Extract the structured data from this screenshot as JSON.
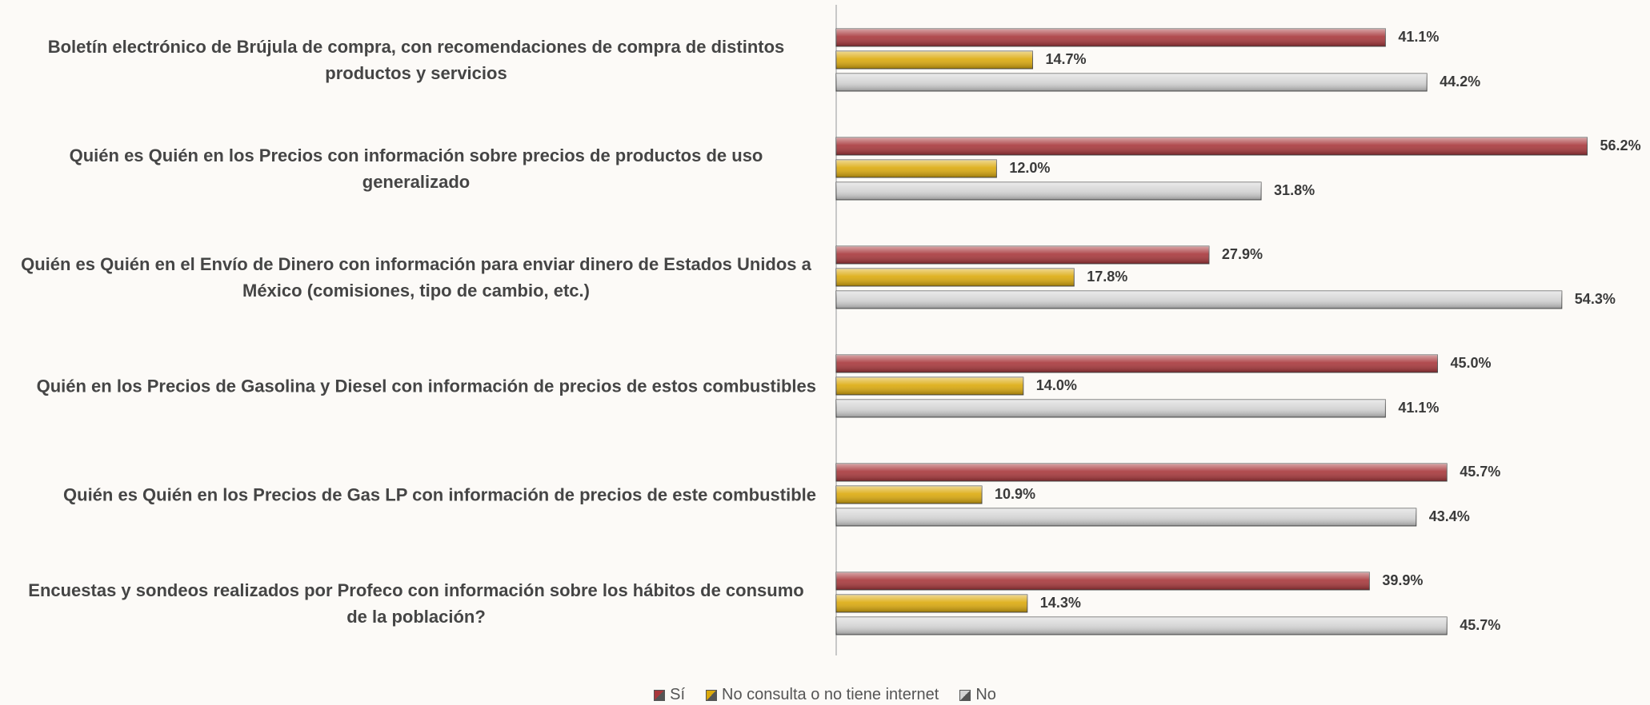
{
  "chart_data": {
    "type": "bar",
    "orientation": "horizontal",
    "categories": [
      "Boletín electrónico de Brújula de compra, con recomendaciones de compra de distintos productos y servicios",
      "Quién es Quién en los Precios con información sobre precios de productos de uso generalizado",
      "Quién es Quién en el Envío de Dinero con información para enviar dinero de Estados Unidos a México (comisiones, tipo de cambio, etc.)",
      "Quién en los Precios de Gasolina y Diesel con información de precios de estos combustibles",
      "Quién es Quién en los Precios de Gas LP con información de precios de este combustible",
      "Encuestas y sondeos realizados por Profeco con información sobre los hábitos de consumo de la población?"
    ],
    "series": [
      {
        "name": "Sí",
        "color": "#a8373b",
        "values": [
          41.1,
          56.2,
          27.9,
          45.0,
          45.7,
          39.9
        ],
        "value_labels": [
          "41.1%",
          "56.2%",
          "27.9%",
          "45.0%",
          "45.7%",
          "39.9%"
        ]
      },
      {
        "name": "No consulta o no tiene internet",
        "color": "#dcaa0c",
        "values": [
          14.7,
          12.0,
          17.8,
          14.0,
          10.9,
          14.3
        ],
        "value_labels": [
          "14.7%",
          "12.0%",
          "17.8%",
          "14.0%",
          "10.9%",
          "14.3%"
        ]
      },
      {
        "name": "No",
        "color": "#d4d4d4",
        "values": [
          44.2,
          31.8,
          54.3,
          41.1,
          43.4,
          45.7
        ],
        "value_labels": [
          "44.2%",
          "31.8%",
          "54.3%",
          "41.1%",
          "43.4%",
          "45.7%"
        ]
      }
    ],
    "legend": "bottom"
  }
}
